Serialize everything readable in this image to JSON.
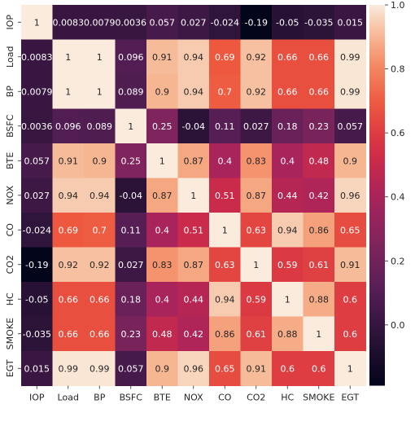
{
  "chart_data": {
    "type": "heatmap",
    "title": "",
    "xlabel": "",
    "ylabel": "",
    "x_labels": [
      "IOP",
      "Load",
      "BP",
      "BSFC",
      "BTE",
      "NOX",
      "CO",
      "CO2",
      "HC",
      "SMOKE",
      "EGT"
    ],
    "y_labels": [
      "IOP",
      "Load",
      "BP",
      "BSFC",
      "BTE",
      "NOX",
      "CO",
      "CO2",
      "HC",
      "SMOKE",
      "EGT"
    ],
    "values": [
      [
        1,
        0.0083,
        0.0079,
        0.0036,
        0.057,
        0.027,
        -0.024,
        -0.19,
        -0.05,
        -0.035,
        0.015
      ],
      [
        0.0083,
        1,
        1,
        0.096,
        0.91,
        0.94,
        0.69,
        0.92,
        0.66,
        0.66,
        0.99
      ],
      [
        0.0079,
        1,
        1,
        0.089,
        0.9,
        0.94,
        0.7,
        0.92,
        0.66,
        0.66,
        0.99
      ],
      [
        0.0036,
        0.096,
        0.089,
        1,
        0.25,
        -0.04,
        0.11,
        0.027,
        0.18,
        0.23,
        0.057
      ],
      [
        0.057,
        0.91,
        0.9,
        0.25,
        1,
        0.87,
        0.4,
        0.83,
        0.4,
        0.48,
        0.9
      ],
      [
        0.027,
        0.94,
        0.94,
        -0.04,
        0.87,
        1,
        0.51,
        0.87,
        0.44,
        0.42,
        0.96
      ],
      [
        -0.024,
        0.69,
        0.7,
        0.11,
        0.4,
        0.51,
        1,
        0.63,
        0.94,
        0.86,
        0.65
      ],
      [
        -0.19,
        0.92,
        0.92,
        0.027,
        0.83,
        0.87,
        0.63,
        1,
        0.59,
        0.61,
        0.91
      ],
      [
        -0.05,
        0.66,
        0.66,
        0.18,
        0.4,
        0.44,
        0.94,
        0.59,
        1,
        0.88,
        0.6
      ],
      [
        -0.035,
        0.66,
        0.66,
        0.23,
        0.48,
        0.42,
        0.86,
        0.61,
        0.88,
        1,
        0.6
      ],
      [
        0.015,
        0.99,
        0.99,
        0.057,
        0.9,
        0.96,
        0.65,
        0.91,
        0.6,
        0.6,
        1
      ]
    ],
    "cell_labels": [
      [
        "1",
        "0.0083",
        "0.0079",
        "0.0036",
        "0.057",
        "0.027",
        "-0.024",
        "-0.19",
        "-0.05",
        "-0.035",
        "0.015"
      ],
      [
        "0.0083",
        "1",
        "1",
        "0.096",
        "0.91",
        "0.94",
        "0.69",
        "0.92",
        "0.66",
        "0.66",
        "0.99"
      ],
      [
        "0.0079",
        "1",
        "1",
        "0.089",
        "0.9",
        "0.94",
        "0.7",
        "0.92",
        "0.66",
        "0.66",
        "0.99"
      ],
      [
        "0.0036",
        "0.096",
        "0.089",
        "1",
        "0.25",
        "-0.04",
        "0.11",
        "0.027",
        "0.18",
        "0.23",
        "0.057"
      ],
      [
        "0.057",
        "0.91",
        "0.9",
        "0.25",
        "1",
        "0.87",
        "0.4",
        "0.83",
        "0.4",
        "0.48",
        "0.9"
      ],
      [
        "0.027",
        "0.94",
        "0.94",
        "-0.04",
        "0.87",
        "1",
        "0.51",
        "0.87",
        "0.44",
        "0.42",
        "0.96"
      ],
      [
        "-0.024",
        "0.69",
        "0.7",
        "0.11",
        "0.4",
        "0.51",
        "1",
        "0.63",
        "0.94",
        "0.86",
        "0.65"
      ],
      [
        "-0.19",
        "0.92",
        "0.92",
        "0.027",
        "0.83",
        "0.87",
        "0.63",
        "1",
        "0.59",
        "0.61",
        "0.91"
      ],
      [
        "-0.05",
        "0.66",
        "0.66",
        "0.18",
        "0.4",
        "0.44",
        "0.94",
        "0.59",
        "1",
        "0.88",
        "0.6"
      ],
      [
        "-0.035",
        "0.66",
        "0.66",
        "0.23",
        "0.48",
        "0.42",
        "0.86",
        "0.61",
        "0.88",
        "1",
        "0.6"
      ],
      [
        "0.015",
        "0.99",
        "0.99",
        "0.057",
        "0.9",
        "0.96",
        "0.65",
        "0.91",
        "0.6",
        "0.6",
        "1"
      ]
    ],
    "colormap": "rocket",
    "color_range": [
      -0.19,
      1.0
    ],
    "colorbar": {
      "ticks": [
        0.0,
        0.2,
        0.4,
        0.6,
        0.8,
        1.0
      ],
      "tick_labels": [
        "0.0",
        "0.2",
        "0.4",
        "0.6",
        "0.8",
        "1.0"
      ],
      "placement": "right"
    },
    "grid": false,
    "legend": "colorbar-right"
  }
}
